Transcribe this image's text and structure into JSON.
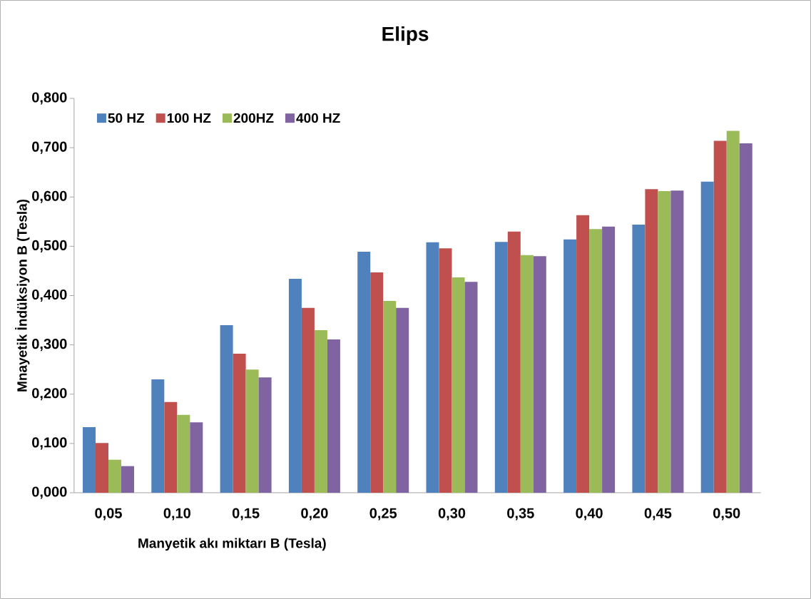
{
  "chart_data": {
    "type": "bar",
    "title": "Elips",
    "xlabel": "Manyetik akı miktarı B (Tesla)",
    "ylabel": "Mnayetik İndüksiyon B (Tesla)",
    "categories": [
      "0,05",
      "0,10",
      "0,15",
      "0,20",
      "0,25",
      "0,30",
      "0,35",
      "0,40",
      "0,45",
      "0,50"
    ],
    "series": [
      {
        "name": "50 HZ",
        "color": "#4f81bd",
        "values": [
          0.133,
          0.23,
          0.34,
          0.434,
          0.489,
          0.508,
          0.509,
          0.514,
          0.544,
          0.631
        ]
      },
      {
        "name": "100 HZ",
        "color": "#c0504d",
        "values": [
          0.101,
          0.184,
          0.282,
          0.375,
          0.447,
          0.496,
          0.53,
          0.563,
          0.616,
          0.714
        ]
      },
      {
        "name": "200HZ",
        "color": "#9bbb59",
        "values": [
          0.067,
          0.158,
          0.25,
          0.33,
          0.389,
          0.437,
          0.482,
          0.535,
          0.612,
          0.734
        ]
      },
      {
        "name": "400 HZ",
        "color": "#8064a2",
        "values": [
          0.054,
          0.143,
          0.234,
          0.311,
          0.375,
          0.428,
          0.48,
          0.54,
          0.613,
          0.709
        ]
      }
    ],
    "ylim": [
      0,
      0.8
    ],
    "yticks": [
      {
        "value": 0,
        "label": "0,000"
      },
      {
        "value": 0.1,
        "label": "0,100"
      },
      {
        "value": 0.2,
        "label": "0,200"
      },
      {
        "value": 0.3,
        "label": "0,300"
      },
      {
        "value": 0.4,
        "label": "0,400"
      },
      {
        "value": 0.5,
        "label": "0,500"
      },
      {
        "value": 0.6,
        "label": "0,600"
      },
      {
        "value": 0.7,
        "label": "0,700"
      },
      {
        "value": 0.8,
        "label": "0,800"
      }
    ],
    "legend": "top left",
    "grid": false
  }
}
